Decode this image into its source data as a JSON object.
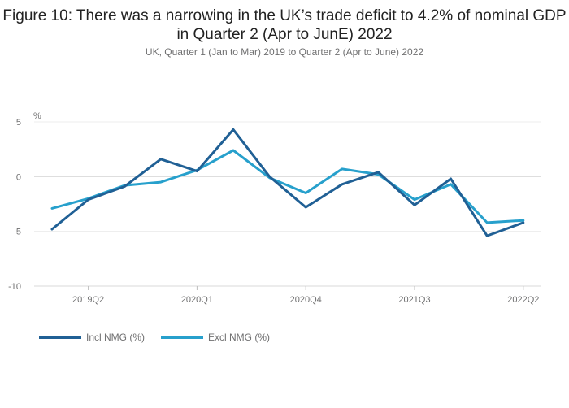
{
  "chart_data": {
    "type": "line",
    "title": "Figure 10: There was a narrowing in the UK’s trade deficit to 4.2% of nominal GDP in Quarter 2 (Apr to JunE) 2022",
    "subtitle": "UK, Quarter 1 (Jan to Mar) 2019 to Quarter 2 (Apr to June) 2022",
    "ylabel": "%",
    "ylim": [
      -10,
      5
    ],
    "yticks": [
      5,
      0,
      -5,
      -10
    ],
    "x": [
      "2019Q1",
      "2019Q2",
      "2019Q3",
      "2019Q4",
      "2020Q1",
      "2020Q2",
      "2020Q3",
      "2020Q4",
      "2021Q1",
      "2021Q2",
      "2021Q3",
      "2021Q4",
      "2022Q1",
      "2022Q2"
    ],
    "xtick_labels": [
      "2019Q2",
      "2020Q1",
      "2020Q4",
      "2021Q3",
      "2022Q2"
    ],
    "series": [
      {
        "name": "Incl NMG (%)",
        "color": "#206095",
        "values": [
          -4.8,
          -2.1,
          -0.9,
          1.6,
          0.5,
          4.3,
          0.0,
          -2.8,
          -0.7,
          0.4,
          -2.6,
          -0.2,
          -5.4,
          -4.2
        ]
      },
      {
        "name": "Excl NMG (%)",
        "color": "#27a0cc",
        "values": [
          -2.9,
          -2.0,
          -0.8,
          -0.5,
          0.6,
          2.4,
          -0.1,
          -1.5,
          0.7,
          0.2,
          -2.1,
          -0.7,
          -4.2,
          -4.0
        ]
      }
    ]
  }
}
